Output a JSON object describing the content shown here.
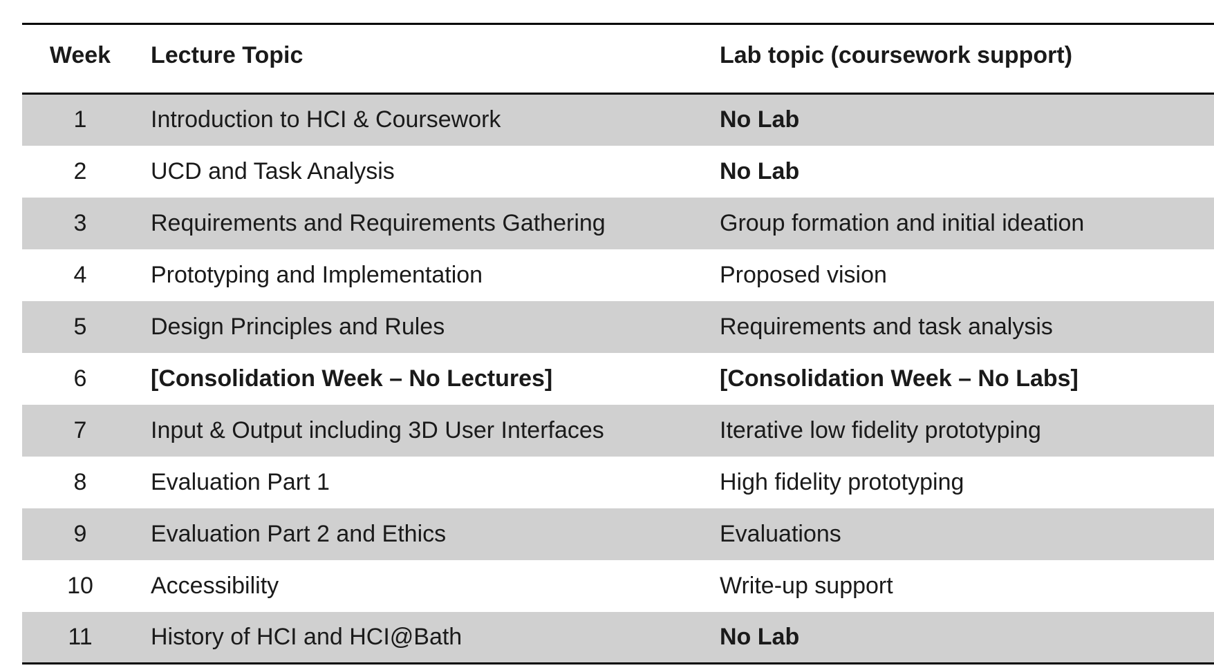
{
  "table": {
    "headers": {
      "week": "Week",
      "lecture": "Lecture Topic",
      "lab": "Lab topic (coursework support)"
    },
    "rows": [
      {
        "week": "1",
        "lecture": "Introduction to HCI & Coursework",
        "lab": "No Lab"
      },
      {
        "week": "2",
        "lecture": "UCD and Task Analysis",
        "lab": "No Lab"
      },
      {
        "week": "3",
        "lecture": "Requirements and Requirements Gathering",
        "lab": "Group formation and initial ideation"
      },
      {
        "week": "4",
        "lecture": "Prototyping and Implementation",
        "lab": "Proposed vision"
      },
      {
        "week": "5",
        "lecture": "Design Principles and Rules",
        "lab": "Requirements and task analysis"
      },
      {
        "week": "6",
        "lecture": "[Consolidation Week – No Lectures]",
        "lab": "[Consolidation Week – No Labs]"
      },
      {
        "week": "7",
        "lecture": "Input & Output including 3D User Interfaces",
        "lab": "Iterative low fidelity prototyping"
      },
      {
        "week": "8",
        "lecture": "Evaluation Part 1",
        "lab": "High fidelity prototyping"
      },
      {
        "week": "9",
        "lecture": "Evaluation Part 2 and Ethics",
        "lab": "Evaluations"
      },
      {
        "week": "10",
        "lecture": "Accessibility",
        "lab": "Write-up support"
      },
      {
        "week": "11",
        "lecture": "History of HCI and HCI@Bath",
        "lab": "No Lab"
      }
    ]
  },
  "colors": {
    "shaded_row": "#d0d0d0",
    "rule": "#000000",
    "text": "#1a1a1a"
  }
}
